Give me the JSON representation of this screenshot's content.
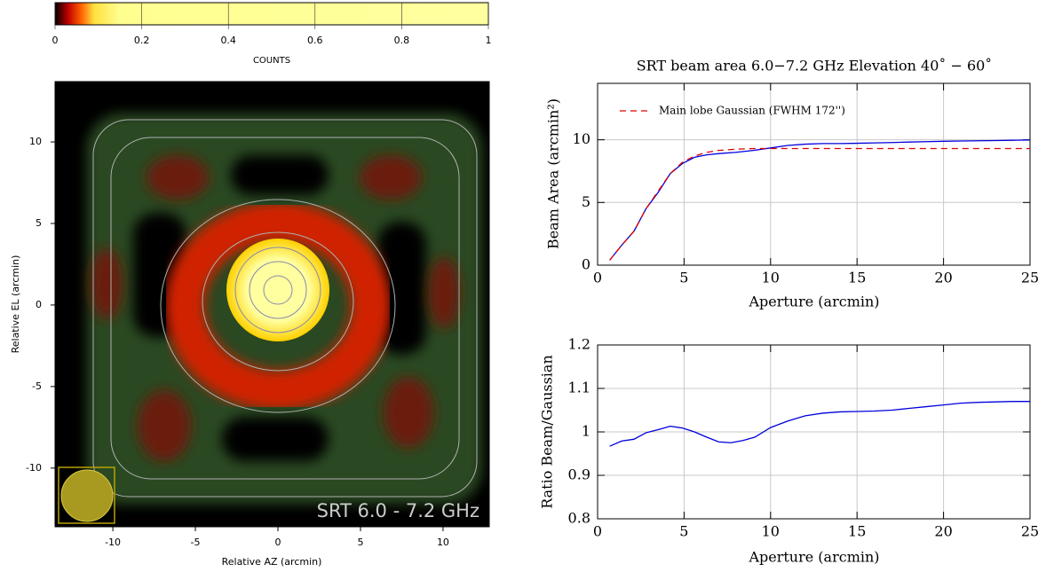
{
  "chart_data": [
    {
      "type": "image",
      "xlabel": "Relative AZ (arcmin)",
      "ylabel": "Relative EL (arcmin)",
      "xlim": [
        -13.5,
        12.8
      ],
      "xticks": [
        -10,
        -5,
        0,
        5,
        10
      ],
      "ylim": [
        -13.6,
        13.7
      ],
      "yticks": [
        -10,
        -5,
        0,
        5,
        10
      ],
      "annotation": "SRT 6.0 - 7.2 GHz",
      "colorbar": {
        "label": "COUNTS",
        "lim": [
          0,
          1
        ],
        "ticks": [
          0,
          0.2,
          0.4,
          0.6,
          0.8,
          1
        ]
      }
    },
    {
      "type": "line",
      "title": "SRT beam area 6.0−7.2 GHz Elevation 40˚ − 60˚",
      "xlabel": "Aperture (arcmin)",
      "ylabel": "Beam Area (arcmin²)",
      "xlim": [
        0,
        25
      ],
      "xticks": [
        0,
        5,
        10,
        15,
        20,
        25
      ],
      "ylim": [
        0,
        14.5
      ],
      "yticks": [
        0,
        5,
        10
      ],
      "grid": true,
      "legend": "upper left",
      "series": [
        {
          "color": "#0000dd",
          "dash": false,
          "x": [
            0.7,
            1.4,
            2.1,
            2.8,
            3.5,
            4.2,
            4.9,
            5.6,
            6.3,
            7,
            8,
            9,
            10,
            11,
            12,
            13,
            14,
            15,
            16,
            17,
            18,
            19,
            20,
            21,
            22,
            23,
            24,
            25
          ],
          "values": [
            0.4,
            1.6,
            2.7,
            4.5,
            5.8,
            7.3,
            8.1,
            8.6,
            8.8,
            8.9,
            9.0,
            9.15,
            9.35,
            9.55,
            9.65,
            9.7,
            9.7,
            9.72,
            9.75,
            9.78,
            9.82,
            9.85,
            9.88,
            9.9,
            9.92,
            9.94,
            9.96,
            9.98
          ]
        },
        {
          "name": "Main lobe Gaussian (FWHM 172'')",
          "color": "#dd0000",
          "dash": true,
          "x": [
            0.7,
            1.4,
            2.1,
            2.8,
            3.5,
            4.2,
            4.9,
            5.6,
            6.3,
            7,
            8,
            9,
            10,
            11,
            12,
            13,
            14,
            15,
            16,
            17,
            18,
            19,
            20,
            21,
            22,
            23,
            24,
            25
          ],
          "values": [
            0.4,
            1.6,
            2.7,
            4.5,
            5.9,
            7.3,
            8.2,
            8.7,
            9.0,
            9.15,
            9.25,
            9.3,
            9.3,
            9.3,
            9.3,
            9.3,
            9.3,
            9.3,
            9.3,
            9.3,
            9.3,
            9.3,
            9.3,
            9.3,
            9.3,
            9.3,
            9.3,
            9.3
          ]
        }
      ]
    },
    {
      "type": "line",
      "xlabel": "Aperture (arcmin)",
      "ylabel": "Ratio Beam/Gaussian",
      "xlim": [
        0,
        25
      ],
      "xticks": [
        0,
        5,
        10,
        15,
        20,
        25
      ],
      "ylim": [
        0.8,
        1.2
      ],
      "yticks": [
        0.8,
        0.9,
        1,
        1.1,
        1.2
      ],
      "grid": true,
      "series": [
        {
          "color": "#0000dd",
          "dash": false,
          "x": [
            0.7,
            1.4,
            2.1,
            2.8,
            3.5,
            4.2,
            4.9,
            5.6,
            6.3,
            7,
            7.7,
            8.4,
            9.1,
            10,
            11,
            12,
            13,
            14,
            15,
            16,
            17,
            18,
            19,
            20,
            21,
            22,
            23,
            24,
            25
          ],
          "values": [
            0.967,
            0.979,
            0.983,
            0.998,
            1.005,
            1.013,
            1.009,
            1.0,
            0.988,
            0.977,
            0.975,
            0.98,
            0.988,
            1.01,
            1.025,
            1.037,
            1.043,
            1.046,
            1.047,
            1.048,
            1.05,
            1.054,
            1.058,
            1.062,
            1.066,
            1.068,
            1.069,
            1.07,
            1.07
          ]
        }
      ]
    }
  ]
}
